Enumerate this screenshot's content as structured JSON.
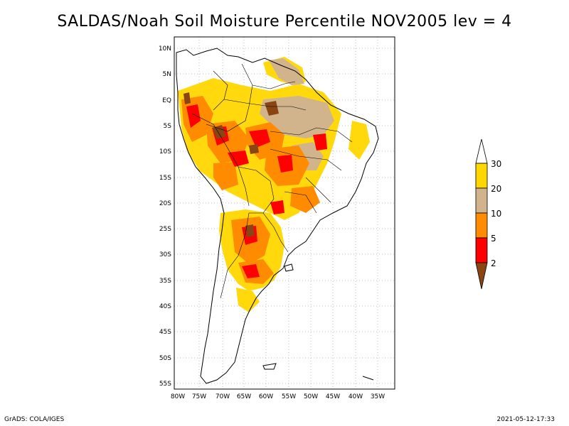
{
  "title": "SALDAS/Noah Soil Moisture Percentile NOV2005 lev = 4",
  "map": {
    "lon_range": [
      -80,
      -30
    ],
    "lat_range": [
      -55,
      12
    ],
    "lat_ticks": [
      "10N",
      "5N",
      "EQ",
      "5S",
      "10S",
      "15S",
      "20S",
      "25S",
      "30S",
      "35S",
      "40S",
      "45S",
      "50S",
      "55S"
    ],
    "lon_ticks": [
      "80W",
      "75W",
      "70W",
      "65W",
      "60W",
      "55W",
      "50W",
      "45W",
      "40W",
      "35W"
    ],
    "grid": true
  },
  "colorbar": {
    "labels": [
      "30",
      "20",
      "10",
      "5",
      "2"
    ],
    "colors": {
      "above_30": "#ffffff",
      "c20_30": "#ffd700",
      "c10_20": "#d2b48c",
      "c5_10": "#ff8c00",
      "c2_5": "#ff0000",
      "below_2": "#8b4513"
    }
  },
  "footer": {
    "left": "GrADS: COLA/IGES",
    "right": "2021-05-12-17:33"
  }
}
